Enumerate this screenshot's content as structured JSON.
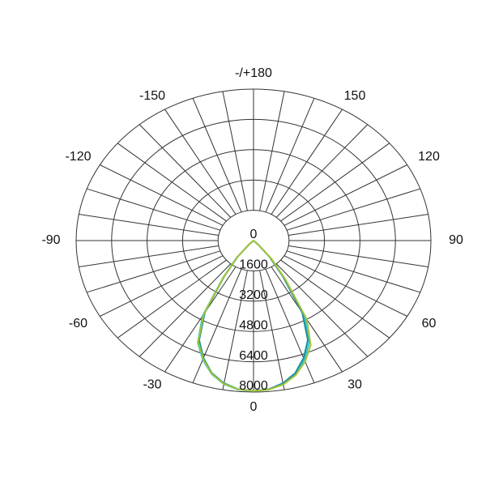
{
  "chart_data": {
    "type": "polar",
    "rlim": [
      0,
      8000
    ],
    "rticks": [
      0,
      1600,
      3200,
      4800,
      6400,
      8000
    ],
    "angle_ticks": [
      0,
      30,
      60,
      90,
      120,
      150,
      {
        "value": 180,
        "label": "-/+180"
      },
      -150,
      -120,
      -90,
      -60,
      -30
    ],
    "x": [
      -50,
      -45,
      -40,
      -35,
      -30,
      -25,
      -20,
      -15,
      -10,
      -5,
      0,
      5,
      10,
      15,
      20,
      25,
      30,
      35,
      40,
      45,
      50
    ],
    "series": [
      {
        "color": "#2fc6d6",
        "values": [
          0,
          300,
          1200,
          2400,
          4600,
          5950,
          6700,
          7300,
          7700,
          7900,
          7950,
          7900,
          7700,
          7300,
          6700,
          5950,
          4600,
          2400,
          1200,
          300,
          0
        ]
      },
      {
        "color": "#1b8f9e",
        "values": [
          0,
          250,
          1100,
          2300,
          4400,
          5800,
          6600,
          7250,
          7650,
          7880,
          7950,
          7880,
          7650,
          7250,
          6600,
          5800,
          4400,
          2300,
          1100,
          250,
          0
        ]
      },
      {
        "color": "#a3c236",
        "values": [
          0,
          280,
          1150,
          2350,
          4500,
          5900,
          6650,
          7280,
          7680,
          7890,
          7950,
          7900,
          7720,
          7350,
          6800,
          6100,
          4800,
          2500,
          1250,
          320,
          0
        ]
      }
    ]
  }
}
